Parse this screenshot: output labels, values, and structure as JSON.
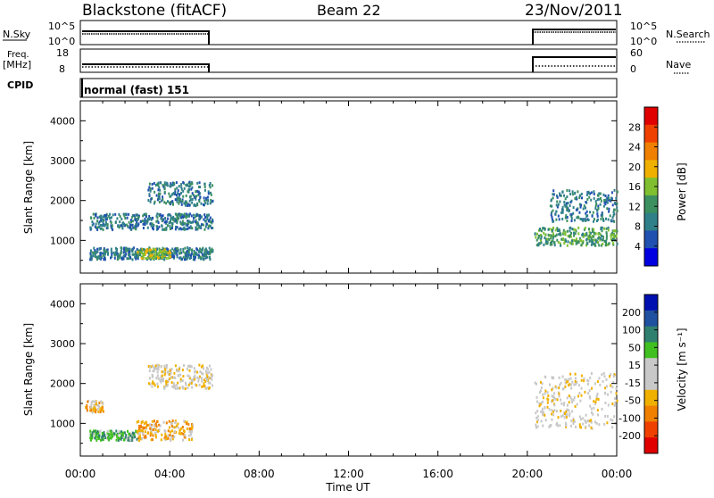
{
  "header": {
    "station": "Blackstone (fitACF)",
    "beam": "Beam 22",
    "date": "23/Nov/2011"
  },
  "top_panels": {
    "nsky_label": "N.Sky",
    "nsky_ticks": [
      "10^5",
      "10^0"
    ],
    "nsearch_label": "N.Search",
    "nsearch_ticks": [
      "10^5",
      "10^0"
    ],
    "freq_label": "Freq.",
    "freq_unit": "[MHz]",
    "freq_ticks": [
      "18",
      "8"
    ],
    "nave_label": "Nave",
    "nave_ticks": [
      "60",
      "0"
    ],
    "cpid_label": "CPID",
    "cpid_value": "normal (fast) 151"
  },
  "x_axis": {
    "label": "Time UT",
    "ticks": [
      "00:00",
      "04:00",
      "08:00",
      "12:00",
      "16:00",
      "20:00",
      "00:00"
    ]
  },
  "colors": {
    "power": [
      "#0000e0",
      "#2050b0",
      "#30808a",
      "#3c9060",
      "#80c030",
      "#f0b000",
      "#f08000",
      "#f04000",
      "#e00000"
    ],
    "velocity": [
      "#e00000",
      "#f04000",
      "#f08000",
      "#f0b000",
      "#c8c8c8",
      "#c8c8c8",
      "#40c020",
      "#308070",
      "#2050a0",
      "#0010b0"
    ]
  },
  "chart_data": [
    {
      "type": "heatmap",
      "name": "power",
      "ylabel": "Slant Range [km]",
      "colorbar_label": "Power [dB]",
      "colorbar_ticks": [
        "28",
        "24",
        "20",
        "16",
        "12",
        "8",
        "4"
      ],
      "ylim": [
        180,
        4500
      ],
      "yticks": [
        "4000",
        "3000",
        "2000",
        "1000"
      ],
      "xlim": [
        0,
        24
      ],
      "segments": [
        {
          "t0": 0.4,
          "t1": 5.9,
          "r0": 550,
          "r1": 850,
          "level": 2
        },
        {
          "t0": 2.5,
          "t1": 4.0,
          "r0": 580,
          "r1": 820,
          "level": 4
        },
        {
          "t0": 0.4,
          "t1": 5.9,
          "r0": 1300,
          "r1": 1700,
          "level": 2
        },
        {
          "t0": 3.0,
          "t1": 5.9,
          "r0": 1900,
          "r1": 2500,
          "level": 2
        },
        {
          "t0": 20.3,
          "t1": 24.0,
          "r0": 900,
          "r1": 1350,
          "level": 3
        },
        {
          "t0": 21.0,
          "t1": 24.0,
          "r0": 1500,
          "r1": 2300,
          "level": 2
        }
      ]
    },
    {
      "type": "heatmap",
      "name": "velocity",
      "ylabel": "Slant Range [km]",
      "colorbar_label": "Velocity [m s⁻¹]",
      "colorbar_ticks": [
        "200",
        "100",
        "50",
        "15",
        "-15",
        "-50",
        "-100",
        "-200"
      ],
      "ylim": [
        180,
        4500
      ],
      "yticks": [
        "4000",
        "3000",
        "2000",
        "1000"
      ],
      "xlim": [
        0,
        24
      ],
      "segments": [
        {
          "t0": 0.4,
          "t1": 2.5,
          "r0": 600,
          "r1": 850,
          "level": 6
        },
        {
          "t0": 2.5,
          "t1": 5.0,
          "r0": 600,
          "r1": 1100,
          "level": 3
        },
        {
          "t0": 0.2,
          "t1": 1.0,
          "r0": 1300,
          "r1": 1600,
          "level": 3
        },
        {
          "t0": 3.0,
          "t1": 5.9,
          "r0": 1900,
          "r1": 2500,
          "level": 4
        },
        {
          "t0": 20.3,
          "t1": 24.0,
          "r0": 900,
          "r1": 2300,
          "level": 4
        }
      ]
    }
  ]
}
